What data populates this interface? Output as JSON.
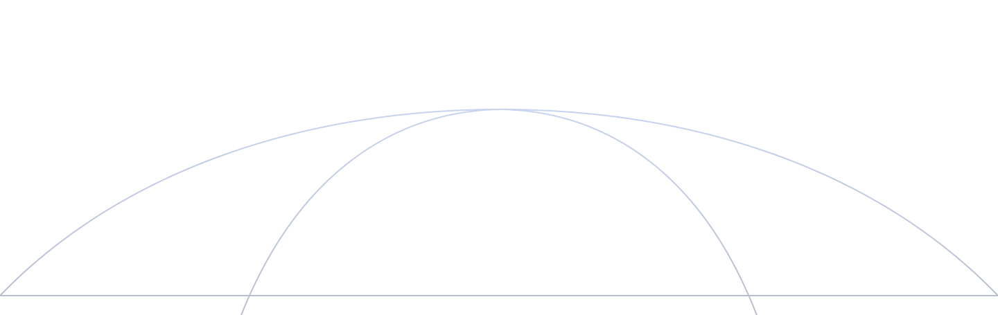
{
  "graphic": {
    "icon": "globe-wireframe-icon",
    "style": {
      "stroke_top": "#c7d3ef",
      "stroke_bottom": "#b7bfcf",
      "background": "#ffffff"
    }
  }
}
